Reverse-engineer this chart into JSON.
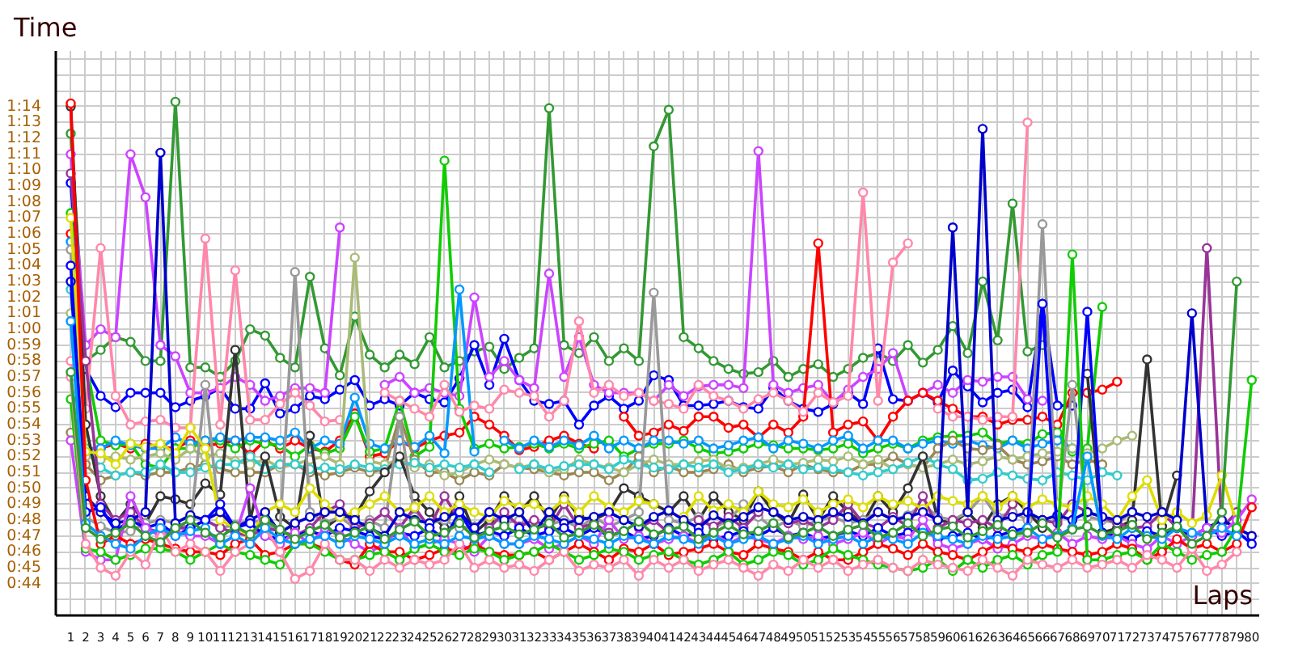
{
  "chart_data": {
    "type": "line",
    "ylabel": "Time",
    "xlabel": "Laps",
    "grid": true,
    "marker": "circle",
    "x": [
      1,
      2,
      3,
      4,
      5,
      6,
      7,
      8,
      9,
      10,
      11,
      12,
      13,
      14,
      15,
      16,
      17,
      18,
      19,
      20,
      21,
      22,
      23,
      24,
      25,
      26,
      27,
      28,
      29,
      30,
      31,
      32,
      33,
      34,
      35,
      36,
      37,
      38,
      39,
      40,
      41,
      42,
      43,
      44,
      45,
      46,
      47,
      48,
      49,
      50,
      51,
      52,
      53,
      54,
      55,
      56,
      57,
      58,
      59,
      60,
      61,
      62,
      63,
      64,
      65,
      66,
      67,
      68,
      69,
      70,
      71,
      72,
      73,
      74,
      75,
      76,
      77,
      78,
      79,
      80
    ],
    "xlim": [
      0,
      80.5
    ],
    "xticks": [
      1,
      2,
      3,
      4,
      5,
      6,
      7,
      8,
      9,
      10,
      11,
      12,
      13,
      14,
      15,
      16,
      17,
      18,
      19,
      20,
      21,
      22,
      23,
      24,
      25,
      26,
      27,
      28,
      29,
      30,
      31,
      32,
      33,
      34,
      35,
      36,
      37,
      38,
      39,
      40,
      41,
      42,
      43,
      44,
      45,
      46,
      47,
      48,
      49,
      50,
      51,
      52,
      53,
      54,
      55,
      56,
      57,
      58,
      59,
      60,
      61,
      62,
      63,
      64,
      65,
      66,
      67,
      68,
      69,
      70,
      71,
      72,
      73,
      74,
      75,
      76,
      77,
      78,
      79,
      80
    ],
    "ylim": [
      42,
      77.5
    ],
    "yticks": [
      {
        "value": 42,
        "label": null
      },
      {
        "value": 43,
        "label": null
      },
      {
        "value": 44,
        "label": "0:44"
      },
      {
        "value": 45,
        "label": "0:45"
      },
      {
        "value": 46,
        "label": "0:46"
      },
      {
        "value": 47,
        "label": "0:47"
      },
      {
        "value": 48,
        "label": "0:48"
      },
      {
        "value": 49,
        "label": "0:49"
      },
      {
        "value": 50,
        "label": "0:50"
      },
      {
        "value": 51,
        "label": "0:51"
      },
      {
        "value": 52,
        "label": "0:52"
      },
      {
        "value": 53,
        "label": "0:53"
      },
      {
        "value": 54,
        "label": "0:54"
      },
      {
        "value": 55,
        "label": "0:55"
      },
      {
        "value": 56,
        "label": "0:56"
      },
      {
        "value": 57,
        "label": "0:57"
      },
      {
        "value": 58,
        "label": "0:58"
      },
      {
        "value": 59,
        "label": "0:59"
      },
      {
        "value": 60,
        "label": "1:00"
      },
      {
        "value": 61,
        "label": "1:01"
      },
      {
        "value": 62,
        "label": "1:02"
      },
      {
        "value": 63,
        "label": "1:03"
      },
      {
        "value": 64,
        "label": "1:04"
      },
      {
        "value": 65,
        "label": "1:05"
      },
      {
        "value": 66,
        "label": "1:06"
      },
      {
        "value": 67,
        "label": "1:07"
      },
      {
        "value": 68,
        "label": "1:08"
      },
      {
        "value": 69,
        "label": "1:09"
      },
      {
        "value": 70,
        "label": "1:10"
      },
      {
        "value": 71,
        "label": "1:11"
      },
      {
        "value": 72,
        "label": "1:12"
      },
      {
        "value": 73,
        "label": "1:13"
      },
      {
        "value": 74,
        "label": "1:14"
      },
      {
        "value": 75,
        "label": null
      },
      {
        "value": 76,
        "label": null
      },
      {
        "value": 77,
        "label": null
      }
    ],
    "series": [
      {
        "color": "#339933",
        "values": [
          72.3,
          58,
          58.7,
          59.5,
          59.2,
          58,
          58,
          74.3,
          57.6,
          57.6,
          57,
          58,
          60,
          59.6,
          58.2,
          57.6,
          63.3,
          58.8,
          57.1,
          60.8,
          58.4,
          57.6,
          58.4,
          57.8,
          59.5,
          57.6,
          58,
          58.6,
          58.9,
          57.5,
          58.2,
          58.8,
          73.9,
          59,
          58.5,
          59.5,
          58,
          58.8,
          58,
          71.5,
          73.8,
          59.5,
          58.8,
          58,
          57.5,
          57.2,
          57.3,
          58,
          57,
          57.5,
          57.8,
          57,
          57.5,
          58.2,
          58.5,
          58,
          59,
          57.9,
          58.7,
          60.2,
          58.5,
          63,
          59.3,
          67.9,
          58.6,
          59,
          null,
          null,
          null,
          null,
          null,
          null,
          null,
          null,
          null,
          null,
          null,
          null,
          null,
          null
        ]
      },
      {
        "color": "#0000ff",
        "values": [
          69.2,
          57.5,
          55.8,
          55.1,
          56,
          56,
          56,
          55.1,
          55.5,
          55.8,
          56.3,
          55,
          55,
          56.6,
          54.7,
          55,
          55.8,
          55.6,
          56.2,
          56.8,
          55.2,
          55.6,
          55.2,
          56,
          55.6,
          55.4,
          56.9,
          59,
          56.5,
          59.4,
          56.8,
          55.5,
          55.3,
          55.5,
          54,
          55.2,
          55.8,
          55,
          55.5,
          57.1,
          56.8,
          55.2,
          55.2,
          55.3,
          55.5,
          55.1,
          55,
          56.3,
          55.5,
          55,
          54.8,
          55.3,
          56,
          55.3,
          58.8,
          55.6,
          55.5,
          56,
          55.4,
          57.4,
          56.4,
          55.4,
          56,
          56.2,
          55.1,
          61.6,
          55.2,
          55.2,
          null,
          null,
          null,
          null,
          null,
          null,
          null,
          null,
          null,
          null,
          null,
          null
        ]
      },
      {
        "color": "#cc44ff",
        "values": [
          71,
          59,
          60,
          59.5,
          71,
          68.3,
          59,
          58.3,
          56,
          56,
          56.3,
          57,
          56.5,
          55.5,
          55.8,
          56.3,
          56.3,
          56,
          66.4,
          null,
          null,
          56.5,
          57,
          56,
          56.3,
          56,
          55.8,
          62,
          57,
          58,
          56.8,
          56.3,
          63.5,
          57,
          59.5,
          56.5,
          56,
          56,
          56,
          55.5,
          56.5,
          55.8,
          56.4,
          56.5,
          56.5,
          56.3,
          71.2,
          56.5,
          56,
          56.3,
          56.5,
          55.4,
          56.2,
          57,
          57.5,
          58.5,
          55.5,
          56,
          56.5,
          56,
          56.8,
          56.7,
          57,
          57,
          55.6,
          55.5,
          null,
          null,
          null,
          null,
          null,
          null,
          null,
          null,
          null,
          null,
          null,
          null,
          null,
          null
        ]
      },
      {
        "color": "#ff0000",
        "values": [
          66,
          52.5,
          52.5,
          52.8,
          52.5,
          52.8,
          52.6,
          52.5,
          53,
          52.7,
          52.8,
          53,
          52.1,
          53,
          52.5,
          53,
          52.5,
          52.3,
          53,
          54.7,
          52,
          52.2,
          53,
          52.5,
          53,
          53.3,
          53.5,
          54.5,
          54,
          53.3,
          52.4,
          52.6,
          53,
          53.3,
          52.8,
          52.5,
          null,
          54.5,
          53.3,
          53.5,
          54,
          53.6,
          54.5,
          54.5,
          53.8,
          54,
          53.2,
          54,
          53.5,
          54.5,
          65.4,
          53.5,
          54,
          54.2,
          53,
          54.5,
          55.5,
          56,
          55.5,
          55,
          54.5,
          54.5,
          54,
          54.3,
          54.3,
          54.5,
          54,
          56,
          56,
          56.2,
          56.7,
          null,
          null,
          null,
          null,
          null,
          null,
          null,
          null,
          null
        ]
      },
      {
        "color": "#11cc00",
        "values": [
          67.3,
          58,
          53,
          52.7,
          52.8,
          51.5,
          51.3,
          52.5,
          52.5,
          53,
          53,
          52.5,
          53,
          52.8,
          52.7,
          52,
          52.7,
          52.2,
          52.5,
          54.5,
          52.3,
          52.5,
          55.5,
          52,
          52.6,
          70.6,
          55,
          52.5,
          52.8,
          52.5,
          52.6,
          52.8,
          52.5,
          52.8,
          52.5,
          52.8,
          53,
          52,
          52.5,
          52.8,
          52.8,
          53,
          52.5,
          52.2,
          52.3,
          52.5,
          52.8,
          52.7,
          52.5,
          52.5,
          52.4,
          52.5,
          52.8,
          52.2,
          52.5,
          52.8,
          52.5,
          53,
          53.2,
          53.3,
          53.3,
          53.5,
          52.8,
          53,
          52.8,
          53.4,
          53.5,
          52.3,
          52.5,
          61.4,
          null,
          null,
          null,
          null,
          null,
          null,
          null,
          null,
          null,
          null
        ]
      },
      {
        "color": "#0099ff",
        "values": [
          65.5,
          52.5,
          52.5,
          53,
          52.7,
          52.5,
          52.5,
          53.2,
          52.8,
          53,
          53.2,
          53,
          53.2,
          53.2,
          53,
          53.5,
          52.5,
          53,
          52.8,
          55.7,
          52.8,
          52.5,
          53,
          52.6,
          53.3,
          52.2,
          62.5,
          52.3,
          null,
          53,
          52.5,
          53,
          52.6,
          53,
          52.7,
          53.3,
          52.5,
          53,
          52.5,
          53,
          53,
          52.8,
          53,
          52.5,
          52.7,
          53,
          53.2,
          52.5,
          53,
          52.8,
          52.5,
          53,
          53.3,
          52.5,
          53,
          53,
          52.5,
          52.8,
          53,
          52.8,
          53,
          52.7,
          52.5,
          53,
          52.5,
          52.8,
          53,
          52.5,
          null,
          null,
          null,
          null,
          null,
          null,
          null,
          null,
          null,
          null,
          null,
          null
        ]
      },
      {
        "color": "#ff88aa",
        "values": [
          58,
          55,
          65.1,
          55.8,
          54,
          54.2,
          54.3,
          53.8,
          53.8,
          65.7,
          54,
          63.7,
          54.3,
          54.3,
          55.3,
          56,
          55.2,
          54.2,
          54.3,
          null,
          null,
          56,
          55.5,
          55,
          54.5,
          56.5,
          54.8,
          55.2,
          55,
          56.2,
          56,
          55.8,
          54.5,
          55.5,
          60.5,
          56,
          56.5,
          55.8,
          56,
          55.5,
          55.3,
          55,
          56.5,
          55.8,
          55.5,
          55,
          55.6,
          56,
          55.5,
          54.8,
          56,
          55.4,
          55.8,
          68.6,
          55.5,
          64.2,
          65.4,
          null,
          55,
          54.5,
          54.5,
          54.3,
          54.5,
          54.5,
          73,
          null,
          null,
          null,
          null,
          null,
          null,
          null,
          null,
          null,
          null,
          null,
          null,
          null,
          null,
          null
        ]
      },
      {
        "color": "#998855",
        "values": [
          53.5,
          51.5,
          50.5,
          50.8,
          51,
          50.8,
          51,
          51,
          51.3,
          51.5,
          51.2,
          51,
          51,
          51,
          51.5,
          51.5,
          51,
          50.8,
          51,
          51.3,
          51,
          51.2,
          54.5,
          51.8,
          51,
          51,
          50.5,
          51,
          50.8,
          51.5,
          51.3,
          51.2,
          51,
          50.8,
          51,
          51,
          50.5,
          51,
          52,
          51,
          51.4,
          51,
          51,
          51.2,
          51.5,
          51,
          51.3,
          51.4,
          51,
          51.5,
          51.2,
          51,
          51,
          51.5,
          51.5,
          52,
          51.5,
          51.3,
          52.5,
          53,
          52.5,
          52.4,
          52.7,
          51.8,
          51.5,
          51.7,
          52,
          51.5,
          51.8,
          51.5,
          null,
          null,
          null,
          null,
          null,
          null,
          null,
          null,
          null,
          null
        ]
      },
      {
        "color": "#aabb77",
        "values": [
          61,
          52,
          51.8,
          52,
          51.8,
          52,
          52.2,
          51.8,
          52.5,
          52,
          52.2,
          51.7,
          51.5,
          51.8,
          51.3,
          51.5,
          51.8,
          52,
          51.5,
          64.5,
          51.7,
          51.5,
          51.8,
          51.3,
          51.5,
          50.8,
          51,
          51.5,
          51.8,
          51.5,
          51.3,
          51.5,
          51,
          51.2,
          51.8,
          51.5,
          51.3,
          51,
          51.5,
          51.8,
          51.5,
          51.5,
          51.7,
          51.8,
          51.2,
          51.3,
          51.5,
          51.8,
          51.5,
          51.6,
          51.8,
          51.7,
          52,
          51.5,
          51.8,
          51.2,
          51.5,
          51.3,
          51.5,
          51.8,
          51.5,
          51.7,
          52,
          51.8,
          52,
          52.2,
          52.3,
          52.5,
          52.2,
          52.5,
          53,
          53.3,
          null,
          null,
          null,
          null,
          null,
          null,
          null,
          null
        ]
      },
      {
        "color": "#33cccc",
        "values": [
          62.5,
          52.5,
          51.3,
          50.8,
          51,
          51,
          51.5,
          51,
          51,
          51.3,
          51.5,
          51.5,
          52,
          51.2,
          51.5,
          51.5,
          51.2,
          51.3,
          51.2,
          51.5,
          51.3,
          51.2,
          51.5,
          51.6,
          51.3,
          51.5,
          51.3,
          51.5,
          51,
          null,
          51.2,
          51.5,
          51.2,
          51.4,
          51.5,
          51.5,
          51.2,
          51.8,
          51.5,
          51.3,
          51.2,
          51.5,
          51.3,
          51.5,
          51,
          51.2,
          51.5,
          51.3,
          51.5,
          51.2,
          51.3,
          51.2,
          51,
          50.8,
          51,
          51.2,
          51.6,
          52,
          51.5,
          51.2,
          50.5,
          50.6,
          51,
          50.8,
          50.6,
          50.5,
          51,
          50.8,
          50.5,
          51,
          50.8,
          null,
          null,
          null,
          null,
          null,
          null,
          null,
          null,
          null
        ]
      },
      {
        "color": "#333333",
        "values": [
          74,
          54,
          49.5,
          47.8,
          49,
          47.8,
          49.5,
          49.3,
          49,
          50.3,
          49.6,
          58.7,
          48,
          52,
          48.2,
          47.5,
          53.3,
          47.5,
          48.2,
          48.2,
          49.8,
          51,
          52,
          49.5,
          48.5,
          47.5,
          49.5,
          47.2,
          48,
          49.5,
          48.5,
          49.5,
          48,
          49.5,
          48.2,
          48,
          48.5,
          50,
          49.5,
          49,
          48.5,
          49.5,
          48,
          49.5,
          48.5,
          48,
          49.8,
          48.5,
          47.8,
          49.6,
          48,
          49.5,
          48.5,
          47.8,
          49.5,
          48.5,
          50,
          52,
          48,
          47.8,
          48.5,
          47.5,
          49,
          49.5,
          48.5,
          47.5,
          null,
          null,
          57.2,
          47.2,
          47.5,
          48,
          58.1,
          47.6,
          50.8,
          null,
          null,
          null,
          null,
          null
        ]
      },
      {
        "color": "#999999",
        "values": [
          65,
          48.2,
          47.6,
          47.2,
          47.3,
          47.8,
          48,
          47.8,
          47.5,
          56.5,
          47.5,
          47.7,
          48,
          47.8,
          47.3,
          63.6,
          48.5,
          47.8,
          48.2,
          47.5,
          48,
          47.5,
          54.5,
          48.2,
          47.8,
          48,
          47.5,
          47.6,
          48.2,
          47.8,
          48,
          47.5,
          47.7,
          48,
          47.5,
          48.2,
          47.6,
          48,
          48.5,
          62.3,
          48,
          47.8,
          48.2,
          47.5,
          48,
          49,
          48.2,
          47.5,
          48,
          47.6,
          48,
          48.2,
          47.8,
          48,
          48.5,
          48,
          48.3,
          49,
          48.2,
          48,
          48.5,
          49.5,
          48.2,
          48.5,
          48,
          66.6,
          48,
          56.5,
          48.2,
          48,
          47.8,
          48.5,
          null,
          null,
          null,
          null,
          null,
          null,
          null,
          null
        ]
      },
      {
        "color": "#993399",
        "values": [
          69.8,
          58,
          49,
          48,
          48.5,
          47.5,
          47.2,
          47.5,
          47.5,
          48,
          47.5,
          47.2,
          47,
          47.5,
          47.3,
          47,
          47.5,
          48.5,
          49,
          47.5,
          47.8,
          48.5,
          47.5,
          48.8,
          47.5,
          49.5,
          48,
          null,
          47.5,
          48.5,
          47.6,
          48,
          47.5,
          49,
          47.5,
          47.8,
          47.2,
          null,
          47.5,
          48,
          47.2,
          null,
          48,
          47.6,
          48.2,
          47.5,
          48.5,
          null,
          47.8,
          48,
          47.5,
          48,
          49,
          47.8,
          47.5,
          48.2,
          47.6,
          49.5,
          47.5,
          48,
          47.8,
          48,
          47.5,
          49,
          null,
          48,
          47.8,
          49,
          48.5,
          48.2,
          47.8,
          47.5,
          47.6,
          48.5,
          47.5,
          47,
          65.1,
          47.5,
          48.5,
          null
        ]
      },
      {
        "color": "#dddd00",
        "values": [
          67,
          52.3,
          52.2,
          51.5,
          52.8,
          52.6,
          52.8,
          52.2,
          53.8,
          52.5,
          48,
          47.5,
          47,
          48.5,
          49,
          48.5,
          50,
          49,
          48.2,
          48.5,
          49,
          49.5,
          48.5,
          48.8,
          49.5,
          48.5,
          49,
          48.5,
          48.2,
          49.2,
          48.8,
          49,
          48.5,
          49.3,
          48.5,
          49.5,
          48.8,
          48.5,
          49.2,
          49,
          null,
          48.2,
          49.5,
          48.6,
          49,
          48.5,
          49.8,
          49,
          48.8,
          49.3,
          48.5,
          49,
          49.3,
          48.8,
          49.5,
          49,
          49.2,
          48.7,
          49.5,
          49.2,
          49,
          49.5,
          48.8,
          49.5,
          48.8,
          49.3,
          49,
          48.8,
          49.5,
          49,
          48,
          49.5,
          50.5,
          48,
          48.5,
          47.8,
          48.3,
          50.8,
          47.8,
          null
        ]
      },
      {
        "color": "#0000cc",
        "values": [
          63,
          49.5,
          48.5,
          47.8,
          48,
          48.5,
          71.1,
          47.8,
          48.3,
          48,
          48.5,
          47.5,
          48,
          48.5,
          47.2,
          47.8,
          48.2,
          48.5,
          48.5,
          48,
          47.5,
          47,
          48.5,
          48,
          47.8,
          48.2,
          48.5,
          47.5,
          48.5,
          48,
          48.5,
          47.2,
          48.5,
          47.8,
          48,
          48.2,
          48.5,
          48,
          47.6,
          48.2,
          48.6,
          48,
          47.5,
          48.3,
          47.8,
          48.2,
          48.8,
          48.5,
          48,
          48.2,
          48,
          48.5,
          48.2,
          47.8,
          48.5,
          48,
          48.2,
          48.5,
          48,
          66.4,
          48.5,
          72.6,
          48,
          48.2,
          48.5,
          48,
          48.3,
          48,
          48.5,
          48.2,
          48,
          48.5,
          48.2,
          48.5,
          48,
          61,
          47.5,
          48,
          47.5,
          47
        ]
      },
      {
        "color": "#0000ff",
        "values": [
          64,
          48.5,
          48.8,
          47.3,
          48,
          47.5,
          47.8,
          47,
          47.5,
          48,
          49,
          47.5,
          47.8,
          47,
          46.8,
          47,
          47.3,
          47,
          47.5,
          47.3,
          47,
          46.8,
          47.2,
          47,
          47.5,
          46.8,
          48.5,
          47,
          47.3,
          47,
          47.5,
          47,
          47.3,
          47.5,
          47,
          47.5,
          47,
          47.3,
          46.8,
          47,
          47.5,
          47,
          47.2,
          46.8,
          47,
          47.3,
          47,
          47.5,
          47,
          47.2,
          46.8,
          47,
          47.3,
          47,
          47.5,
          47,
          47.2,
          47.5,
          46.8,
          47,
          47.2,
          46.8,
          47,
          47.3,
          47.5,
          61.6,
          47,
          47.5,
          61.1,
          47.2,
          47,
          46.8,
          47.3,
          47,
          47.5,
          47,
          47.5,
          47,
          47.3,
          46.5
        ]
      },
      {
        "color": "#cc44ff",
        "values": [
          53,
          46,
          45.5,
          45.5,
          49.5,
          47.5,
          47,
          47.3,
          47,
          47,
          46.5,
          47,
          50,
          47,
          46.5,
          47.2,
          46.5,
          47.5,
          47,
          46.5,
          46,
          46.5,
          47.5,
          46.2,
          46.5,
          46.8,
          46.5,
          46,
          47,
          46.5,
          46.5,
          46.8,
          46.2,
          46.5,
          47,
          46.5,
          48,
          46.8,
          47,
          46.5,
          46.8,
          47,
          46.5,
          47.2,
          46.5,
          47,
          46.8,
          46.5,
          47,
          46.8,
          47,
          46.5,
          46.8,
          47.2,
          46.5,
          47,
          46.8,
          48,
          46.5,
          46.2,
          46.5,
          46.8,
          46.2,
          46.5,
          47,
          46.8,
          47.2,
          46.5,
          47,
          46.8,
          47,
          46.5,
          46.2,
          47,
          46.5,
          47,
          47.5,
          47.2,
          48,
          49.3
        ]
      },
      {
        "color": "#ff0000",
        "values": [
          74.2,
          50.5,
          46.5,
          47,
          46.5,
          46.8,
          46.5,
          46.2,
          46,
          46,
          45.8,
          46.5,
          46.8,
          45.8,
          46,
          46.5,
          46.5,
          46.2,
          45.5,
          45.2,
          46.5,
          46,
          46,
          45.5,
          45.8,
          46.2,
          46,
          46.5,
          46,
          45.8,
          45.8,
          46,
          45.5,
          46,
          46.5,
          46,
          45.5,
          46.2,
          46,
          46.5,
          45.8,
          46,
          46.2,
          46.5,
          46,
          45.8,
          46.5,
          46.2,
          46,
          45.5,
          46,
          45.5,
          45.5,
          46,
          46.5,
          46.2,
          45.8,
          46.5,
          46,
          45.8,
          45.5,
          46,
          46.5,
          46.2,
          46,
          46.5,
          46.2,
          46,
          45.8,
          46,
          46.5,
          46.2,
          45.5,
          46,
          46.8,
          46.2,
          46.5,
          46,
          46.5,
          48.8
        ]
      },
      {
        "color": "#11cc00",
        "values": [
          55.6,
          46.2,
          46,
          45.5,
          45.8,
          46.2,
          46.2,
          46,
          45.5,
          46,
          46.5,
          46,
          45.8,
          45.5,
          45.2,
          46.5,
          46.5,
          46,
          45.5,
          45.5,
          45.8,
          46,
          45.5,
          46.2,
          46.5,
          46,
          45.8,
          46.2,
          46,
          45.5,
          45.8,
          46,
          46.5,
          46,
          45.5,
          45.8,
          46.2,
          46,
          45.5,
          45.8,
          46,
          45.5,
          45.2,
          45.5,
          46,
          45.2,
          45.5,
          46,
          45.8,
          45.2,
          45.5,
          46.2,
          45.8,
          45.5,
          45.2,
          45,
          44.8,
          45,
          45.5,
          44.8,
          45.5,
          45,
          45.5,
          45.8,
          45.2,
          45.8,
          46,
          64.7,
          45.5,
          45.5,
          45.8,
          46,
          45.5,
          46.5,
          46,
          45.5,
          45.8,
          46,
          47.5,
          56.8
        ]
      },
      {
        "color": "#ff88aa",
        "values": [
          57,
          46.5,
          45,
          44.5,
          46,
          45.2,
          47.5,
          46,
          46.5,
          46,
          44.8,
          46,
          46.5,
          47.5,
          46,
          44.3,
          44.8,
          46.5,
          45.5,
          45.5,
          44.8,
          45.5,
          45,
          45.5,
          45.2,
          45.5,
          46.5,
          45,
          45.5,
          45,
          45.2,
          44.8,
          45.5,
          46,
          44.8,
          45.2,
          45,
          45.5,
          44.5,
          45.5,
          45,
          45.5,
          44.8,
          45.2,
          45.5,
          45,
          44.5,
          45.2,
          44.8,
          45.5,
          45,
          45.5,
          44.8,
          45.2,
          45.5,
          45,
          44.8,
          45.5,
          45.2,
          45,
          44.8,
          45.5,
          45,
          44.5,
          45.5,
          45.2,
          45,
          45.5,
          45,
          45.2,
          45.5,
          45,
          45.8,
          45.5,
          45,
          46.2,
          44.8,
          45.2,
          46,
          null
        ]
      },
      {
        "color": "#0099ff",
        "values": [
          60.5,
          47.8,
          47,
          46.5,
          46.2,
          47,
          47.5,
          47,
          47.3,
          47.5,
          46.5,
          47,
          46.5,
          47.5,
          46.8,
          46.5,
          46.8,
          47,
          46.5,
          47,
          46.8,
          46.5,
          47,
          46.5,
          46.8,
          46.5,
          47,
          46.8,
          47,
          46.5,
          46.5,
          47,
          46.8,
          46.5,
          47,
          46.8,
          46.5,
          47,
          46.8,
          46.5,
          47,
          46.8,
          46.5,
          47,
          46.5,
          46.8,
          47,
          46.5,
          46.8,
          47,
          46.5,
          46.8,
          47,
          46.5,
          47,
          46.8,
          46.5,
          47.2,
          47,
          46.8,
          46.5,
          47,
          46.8,
          47,
          47.5,
          46.8,
          47,
          47.5,
          52,
          47,
          46.8,
          47.5,
          47,
          46.8,
          47.5,
          47.2,
          47,
          47.5,
          47,
          null
        ]
      },
      {
        "color": "#339933",
        "values": [
          57.3,
          47.5,
          46.8,
          47.2,
          47.8,
          47,
          46.6,
          47.5,
          48,
          47.2,
          46.9,
          47.6,
          47.1,
          48,
          47.4,
          46.8,
          47.3,
          47.7,
          46.9,
          47.2,
          47.6,
          46.8,
          47.4,
          47.9,
          47,
          47.2,
          47.8,
          46.9,
          47.3,
          47.6,
          47.1,
          47.4,
          47.8,
          46.9,
          47.2,
          47.7,
          47,
          47.3,
          47.9,
          47.1,
          47.4,
          47.6,
          46.8,
          47.2,
          47.7,
          47.1,
          47.3,
          47.8,
          46.9,
          47.2,
          47.6,
          47,
          47.4,
          47.7,
          46.9,
          47.2,
          47.8,
          47,
          47.4,
          47.6,
          46.9,
          47.3,
          47.7,
          47.1,
          47.2,
          47.8,
          46.9,
          47.4,
          47.6,
          47.1,
          47.3,
          47.7,
          46.8,
          47.2,
          47.6,
          46.5,
          47,
          48.5,
          63,
          null
        ]
      }
    ]
  }
}
